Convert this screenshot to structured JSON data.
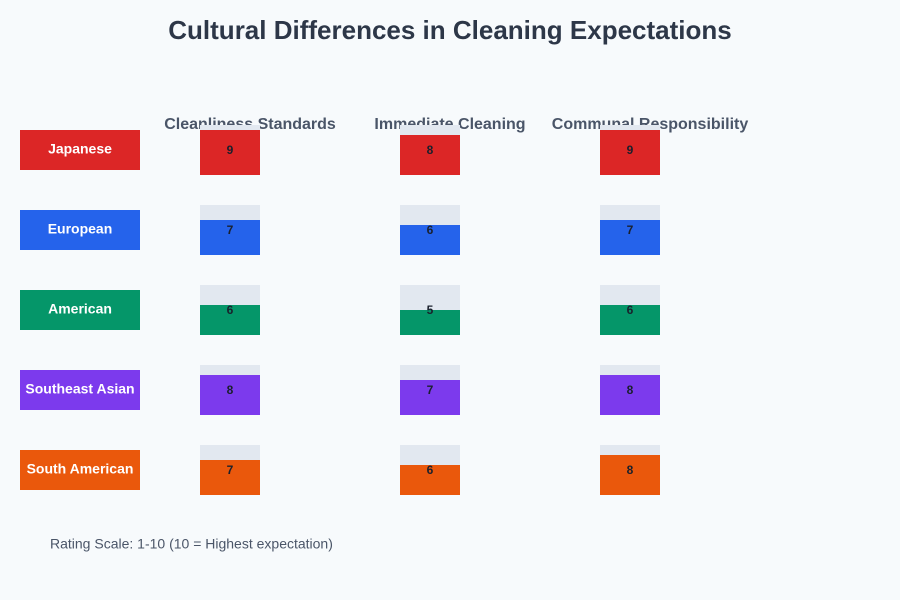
{
  "chart_data": {
    "type": "bar",
    "title": "Cultural Differences in Cleaning Expectations",
    "categories": [
      "Japanese",
      "European",
      "American",
      "Southeast Asian",
      "South American"
    ],
    "colors": [
      "#dc2626",
      "#2563eb",
      "#059669",
      "#7c3aed",
      "#ea580c"
    ],
    "series": [
      {
        "name": "Cleanliness Standards",
        "values": [
          9,
          7,
          6,
          8,
          7
        ]
      },
      {
        "name": "Immediate Cleaning",
        "values": [
          8,
          6,
          5,
          7,
          6
        ]
      },
      {
        "name": "Communal Responsibility",
        "values": [
          9,
          7,
          6,
          8,
          8
        ]
      }
    ],
    "ylim": [
      0,
      10
    ],
    "note": "Rating Scale: 1-10 (10 = Highest expectation)"
  }
}
